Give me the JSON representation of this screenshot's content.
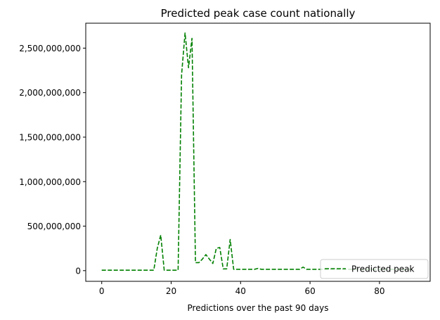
{
  "chart_data": {
    "type": "line",
    "title": "Predicted peak case count nationally",
    "xlabel": "Predictions over the past 90 days",
    "ylabel": "",
    "xlim": [
      -4.6,
      94.6
    ],
    "ylim": [
      -120000000,
      2780000000
    ],
    "xticks": [
      0,
      20,
      40,
      60,
      80
    ],
    "yticks": [
      0,
      500000000,
      1000000000,
      1500000000,
      2000000000,
      2500000000
    ],
    "ytick_labels": [
      "0",
      "500,000,000",
      "1,000,000,000",
      "1,500,000,000",
      "2,000,000,000",
      "2,500,000,000"
    ],
    "grid": false,
    "legend": {
      "position": "lower-right"
    },
    "series": [
      {
        "name": "Predicted peak",
        "color": "#008000",
        "linestyle": "dashed",
        "x": [
          0,
          1,
          2,
          3,
          4,
          5,
          6,
          7,
          8,
          9,
          10,
          11,
          12,
          13,
          14,
          15,
          16,
          17,
          18,
          19,
          20,
          21,
          22,
          23,
          24,
          25,
          26,
          27,
          28,
          29,
          30,
          31,
          32,
          33,
          34,
          35,
          36,
          37,
          38,
          39,
          40,
          41,
          42,
          43,
          44,
          45,
          46,
          47,
          48,
          49,
          50,
          51,
          52,
          53,
          54,
          55,
          56,
          57,
          58,
          59,
          60,
          61,
          62,
          63,
          64,
          65,
          66,
          67,
          68,
          69,
          70,
          71,
          72,
          73,
          74,
          75,
          76,
          77,
          78,
          79,
          80,
          81,
          82,
          83,
          84,
          85,
          86,
          87,
          88,
          89,
          90
        ],
        "y": [
          5000000,
          5000000,
          5000000,
          5000000,
          5000000,
          5000000,
          5000000,
          5000000,
          5000000,
          5000000,
          5000000,
          5000000,
          5000000,
          5000000,
          5000000,
          5000000,
          250000000,
          400000000,
          5000000,
          5000000,
          5000000,
          5000000,
          5000000,
          2200000000,
          2670000000,
          2280000000,
          2610000000,
          90000000,
          90000000,
          130000000,
          180000000,
          130000000,
          80000000,
          250000000,
          260000000,
          20000000,
          20000000,
          350000000,
          15000000,
          15000000,
          15000000,
          15000000,
          15000000,
          15000000,
          15000000,
          25000000,
          15000000,
          15000000,
          15000000,
          15000000,
          15000000,
          15000000,
          15000000,
          15000000,
          15000000,
          15000000,
          15000000,
          15000000,
          40000000,
          15000000,
          15000000,
          15000000,
          15000000,
          15000000,
          15000000,
          15000000,
          15000000,
          15000000,
          15000000,
          15000000,
          15000000,
          15000000,
          15000000,
          15000000,
          15000000,
          15000000,
          15000000,
          15000000,
          15000000,
          15000000,
          15000000,
          15000000,
          15000000,
          15000000,
          15000000,
          15000000,
          15000000,
          15000000,
          15000000,
          15000000,
          15000000
        ]
      }
    ]
  }
}
